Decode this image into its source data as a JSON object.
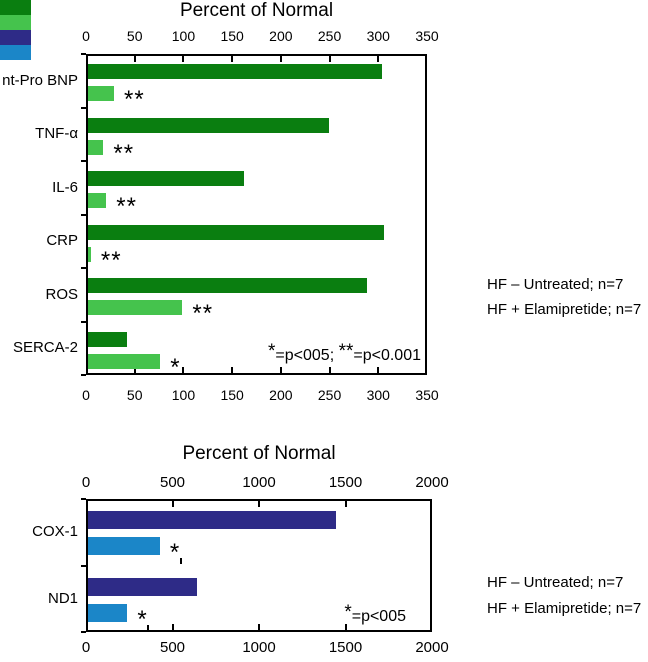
{
  "figure": {
    "background": "#ffffff",
    "text_color": "#000000"
  },
  "chart_data": [
    {
      "type": "bar",
      "orientation": "horizontal",
      "title": "Percent of Normal",
      "xlabel": "",
      "ylabel": "",
      "xlim": [
        0,
        350
      ],
      "xticks": [
        0,
        50,
        100,
        150,
        200,
        250,
        300,
        350
      ],
      "axis_labels_shown": "top and bottom",
      "grid": false,
      "legend_position": "right",
      "categories": [
        "nt-Pro BNP",
        "TNF-α",
        "IL-6",
        "CRP",
        "ROS",
        "SERCA-2"
      ],
      "series": [
        {
          "name": "HF – Untreated; n=7",
          "color": "#0a7e10",
          "values": [
            305,
            250,
            162,
            307,
            290,
            40
          ]
        },
        {
          "name": "HF + Elamipretide; n=7",
          "color": "#45c34d",
          "values": [
            27,
            16,
            19,
            3,
            98,
            75
          ],
          "significance": [
            "**",
            "**",
            "**",
            "**",
            "**",
            "*"
          ]
        }
      ],
      "annotation": "*=p<005; **=p<0.001",
      "annotation_parts": [
        {
          "sup": "*"
        },
        {
          "text": "=p<005; "
        },
        {
          "sup": "**"
        },
        {
          "text": "=p<0.001"
        }
      ]
    },
    {
      "type": "bar",
      "orientation": "horizontal",
      "title": "Percent of Normal",
      "xlabel": "",
      "ylabel": "",
      "xlim": [
        0,
        2000
      ],
      "xticks": [
        0,
        500,
        1000,
        1500,
        2000
      ],
      "axis_labels_shown": "top and bottom",
      "grid": false,
      "legend_position": "right",
      "categories": [
        "COX-1",
        "ND1"
      ],
      "series": [
        {
          "name": "HF – Untreated; n=7",
          "color": "#2e2b87",
          "values": [
            1450,
            640
          ]
        },
        {
          "name": "HF + Elamipretide; n=7",
          "color": "#1b86c8",
          "values": [
            420,
            230
          ],
          "significance": [
            "*",
            "*"
          ],
          "error_marks": [
            550,
            360
          ]
        }
      ],
      "annotation": "*=p<005",
      "annotation_parts": [
        {
          "sup": "*"
        },
        {
          "text": "=p<005"
        }
      ]
    }
  ]
}
